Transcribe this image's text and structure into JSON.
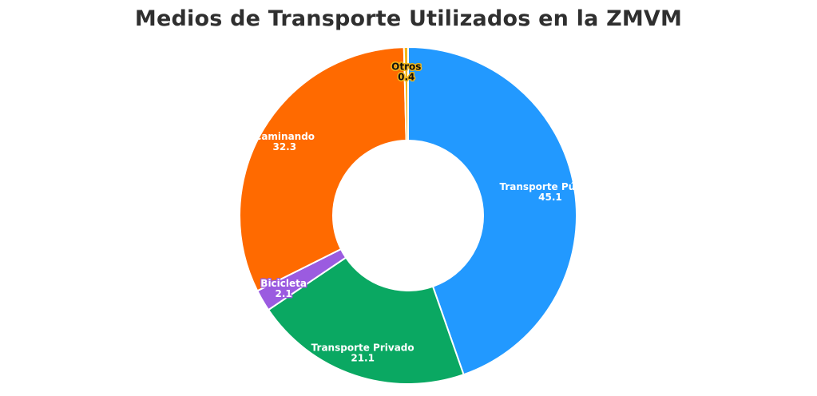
{
  "chart_data": {
    "type": "pie",
    "variant": "donut",
    "title": "Medios de Transporte Utilizados en la ZMVM",
    "categories": [
      "Transporte Público",
      "Transporte Privado",
      "Bicicleta",
      "Caminando",
      "Otros"
    ],
    "values": [
      45.1,
      21.1,
      2.1,
      32.3,
      0.4
    ],
    "value_labels": [
      "45.1",
      "21.1",
      "2.1",
      "32.3",
      "0.4"
    ],
    "colors": [
      "#2299FF",
      "#0AA862",
      "#9B5BE0",
      "#FF6A00",
      "#F2B619"
    ],
    "legend": "none"
  }
}
